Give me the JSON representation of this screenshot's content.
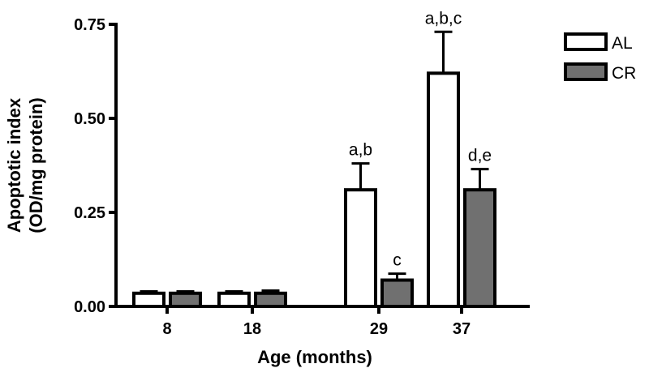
{
  "chart_data": {
    "type": "bar",
    "title": "",
    "xlabel": "Age (months)",
    "ylabel_lines": [
      "Apoptotic index",
      "(OD/mg protein)"
    ],
    "categories": [
      "8",
      "18",
      "29",
      "37"
    ],
    "ylim": [
      0,
      0.75
    ],
    "yticks": [
      0.0,
      0.25,
      0.5,
      0.75
    ],
    "ytick_labels": [
      "0.00",
      "0.25",
      "0.50",
      "0.75"
    ],
    "grid": false,
    "legend_position": "top-right",
    "series": [
      {
        "name": "AL",
        "color": "#ffffff",
        "values": [
          0.035,
          0.035,
          0.31,
          0.62
        ],
        "errors": [
          0.005,
          0.005,
          0.07,
          0.11
        ],
        "annotations": [
          "",
          "",
          "a,b",
          "a,b,c"
        ]
      },
      {
        "name": "CR",
        "color": "#707070",
        "values": [
          0.035,
          0.035,
          0.07,
          0.31
        ],
        "errors": [
          0.005,
          0.007,
          0.017,
          0.055
        ],
        "annotations": [
          "",
          "",
          "c",
          "d,e"
        ]
      }
    ]
  }
}
